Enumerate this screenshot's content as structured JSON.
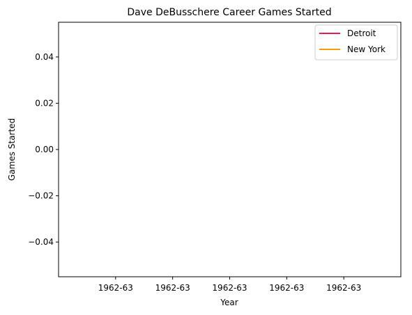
{
  "chart_data": {
    "type": "line",
    "title": "Dave DeBusschere Career Games Started",
    "xlabel": "Year",
    "ylabel": "Games Started",
    "x_tick_labels": [
      "1962-63",
      "1962-63",
      "1962-63",
      "1962-63",
      "1962-63"
    ],
    "ylim": [
      -0.055,
      0.055
    ],
    "y_ticks": [
      -0.04,
      -0.02,
      0.0,
      0.02,
      0.04
    ],
    "y_tick_labels": [
      "−0.04",
      "−0.02",
      "0.00",
      "0.02",
      "0.04"
    ],
    "grid": false,
    "legend_position": "top-right",
    "series": [
      {
        "name": "Detroit",
        "color": "#e8194b",
        "values": []
      },
      {
        "name": "New York",
        "color": "#f59c0a",
        "values": []
      }
    ]
  }
}
